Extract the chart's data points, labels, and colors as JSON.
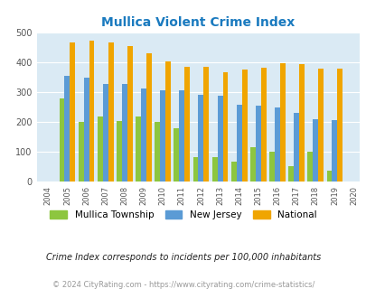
{
  "title": "Mullica Violent Crime Index",
  "years": [
    2004,
    2005,
    2006,
    2007,
    2008,
    2009,
    2010,
    2011,
    2012,
    2013,
    2014,
    2015,
    2016,
    2017,
    2018,
    2019,
    2020
  ],
  "mullica": [
    null,
    280,
    200,
    218,
    203,
    218,
    200,
    180,
    83,
    83,
    68,
    117,
    102,
    52,
    102,
    37,
    null
  ],
  "nj": [
    null,
    355,
    350,
    328,
    328,
    312,
    308,
    308,
    292,
    288,
    260,
    255,
    248,
    230,
    210,
    208,
    null
  ],
  "national": [
    null,
    469,
    474,
    467,
    455,
    432,
    405,
    387,
    387,
    367,
    378,
    384,
    397,
    394,
    381,
    380,
    null
  ],
  "mullica_color": "#8dc63f",
  "nj_color": "#5b9bd5",
  "national_color": "#f0a500",
  "bg_color": "#daeaf4",
  "ylim": [
    0,
    500
  ],
  "yticks": [
    0,
    100,
    200,
    300,
    400,
    500
  ],
  "subtitle": "Crime Index corresponds to incidents per 100,000 inhabitants",
  "footer": "© 2024 CityRating.com - https://www.cityrating.com/crime-statistics/",
  "title_color": "#1a7abf",
  "subtitle_color": "#222222",
  "footer_color": "#999999",
  "bar_width": 0.28
}
